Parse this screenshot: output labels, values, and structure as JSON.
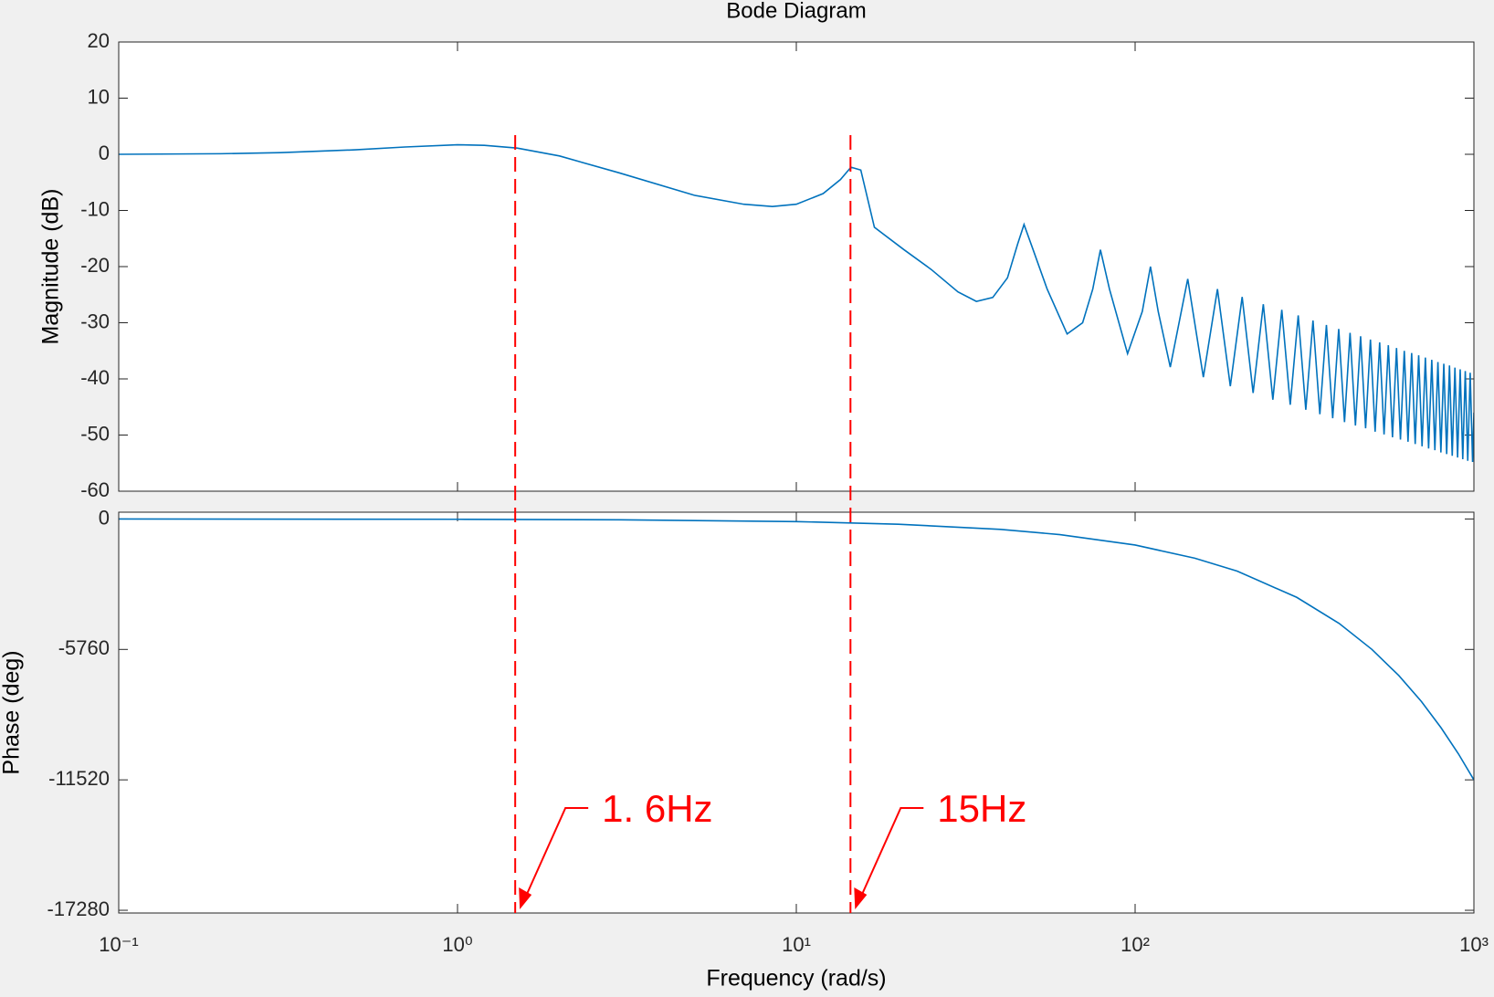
{
  "chart_data": [
    {
      "type": "line",
      "title": "Bode Diagram",
      "ylabel": "Magnitude (dB)",
      "color": "#0072bd",
      "xscale": "log",
      "x": [
        0.1,
        0.2,
        0.3,
        0.5,
        0.7,
        1,
        1.2,
        1.5,
        2,
        3,
        5,
        7,
        8.5,
        10,
        12,
        13.5,
        14.5,
        15.5,
        17,
        20.8,
        25,
        30,
        34,
        38,
        42,
        45,
        47,
        50,
        55,
        63,
        70,
        75,
        79,
        84,
        95,
        105,
        111,
        117,
        127,
        143,
        159,
        175,
        191,
        207,
        223,
        239,
        255,
        271,
        287,
        303,
        319,
        335,
        351,
        367,
        383,
        399,
        415,
        431,
        447,
        463,
        479,
        495,
        511,
        527,
        543,
        559,
        575,
        591,
        607,
        623,
        639,
        655,
        671,
        687,
        703,
        719,
        735,
        751,
        767,
        783,
        799,
        815,
        831,
        847,
        863,
        879,
        895,
        911,
        927,
        943,
        959,
        975,
        991,
        1000
      ],
      "values": [
        0,
        0.1,
        0.3,
        0.8,
        1.3,
        1.7,
        1.6,
        1.1,
        -0.3,
        -3.3,
        -7.3,
        -8.9,
        -9.3,
        -8.9,
        -7,
        -4.5,
        -2.3,
        -2.8,
        -13,
        -17,
        -20.5,
        -24.5,
        -26.2,
        -25.5,
        -22,
        -16,
        -12.5,
        -17,
        -24,
        -32,
        -30,
        -24,
        -17,
        -24,
        -35.5,
        -28,
        -20,
        -28,
        -37.9,
        -22.2,
        -39.7,
        -24,
        -41.3,
        -25.4,
        -42.5,
        -26.7,
        -43.7,
        -27.7,
        -44.6,
        -28.7,
        -45.5,
        -29.6,
        -46.3,
        -30.4,
        -47,
        -31.1,
        -47.7,
        -31.8,
        -48.3,
        -32.4,
        -48.8,
        -33,
        -49.4,
        -33.5,
        -49.9,
        -34,
        -50.4,
        -34.5,
        -50.8,
        -35,
        -51.2,
        -35.4,
        -51.6,
        -35.8,
        -52,
        -36.2,
        -52.4,
        -36.6,
        -52.7,
        -37,
        -53.1,
        -37.3,
        -53.4,
        -37.6,
        -53.7,
        -38,
        -54,
        -38.3,
        -54.3,
        -38.6,
        -54.6,
        -38.9,
        -54.8,
        -46
      ],
      "xlim": [
        0.1,
        1000
      ],
      "xticks": [
        0.1,
        1,
        10,
        100,
        1000
      ],
      "ylim": [
        -60,
        20
      ],
      "yticks": [
        -60,
        -50,
        -40,
        -30,
        -20,
        -10,
        0,
        10,
        20
      ]
    },
    {
      "type": "line",
      "xlabel": "Frequency  (rad/s)",
      "ylabel": "Phase (deg)",
      "color": "#0072bd",
      "xscale": "log",
      "x": [
        0.1,
        1,
        3,
        10,
        20,
        40,
        60,
        100,
        150,
        200,
        300,
        400,
        500,
        600,
        700,
        800,
        900,
        1000
      ],
      "values": [
        -1,
        -12,
        -35,
        -115,
        -230,
        -460,
        -690,
        -1150,
        -1730,
        -2300,
        -3460,
        -4610,
        -5760,
        -6910,
        -8060,
        -9220,
        -10370,
        -11520
      ],
      "xlim": [
        0.1,
        1000
      ],
      "xticks": [
        {
          "value": 0.1,
          "label": "10⁻¹"
        },
        {
          "value": 1,
          "label": "10⁰"
        },
        {
          "value": 10,
          "label": "10¹"
        },
        {
          "value": 100,
          "label": "10²"
        },
        {
          "value": 1000,
          "label": "10³"
        }
      ],
      "ylim": [
        -17400,
        300
      ],
      "yticks": [
        -17280,
        -11520,
        -5760,
        0
      ],
      "markers": [
        {
          "x": 1.48,
          "label": "1. 6Hz"
        },
        {
          "x": 14.45,
          "label": "15Hz"
        }
      ],
      "marker_color": "#ff0000"
    }
  ]
}
